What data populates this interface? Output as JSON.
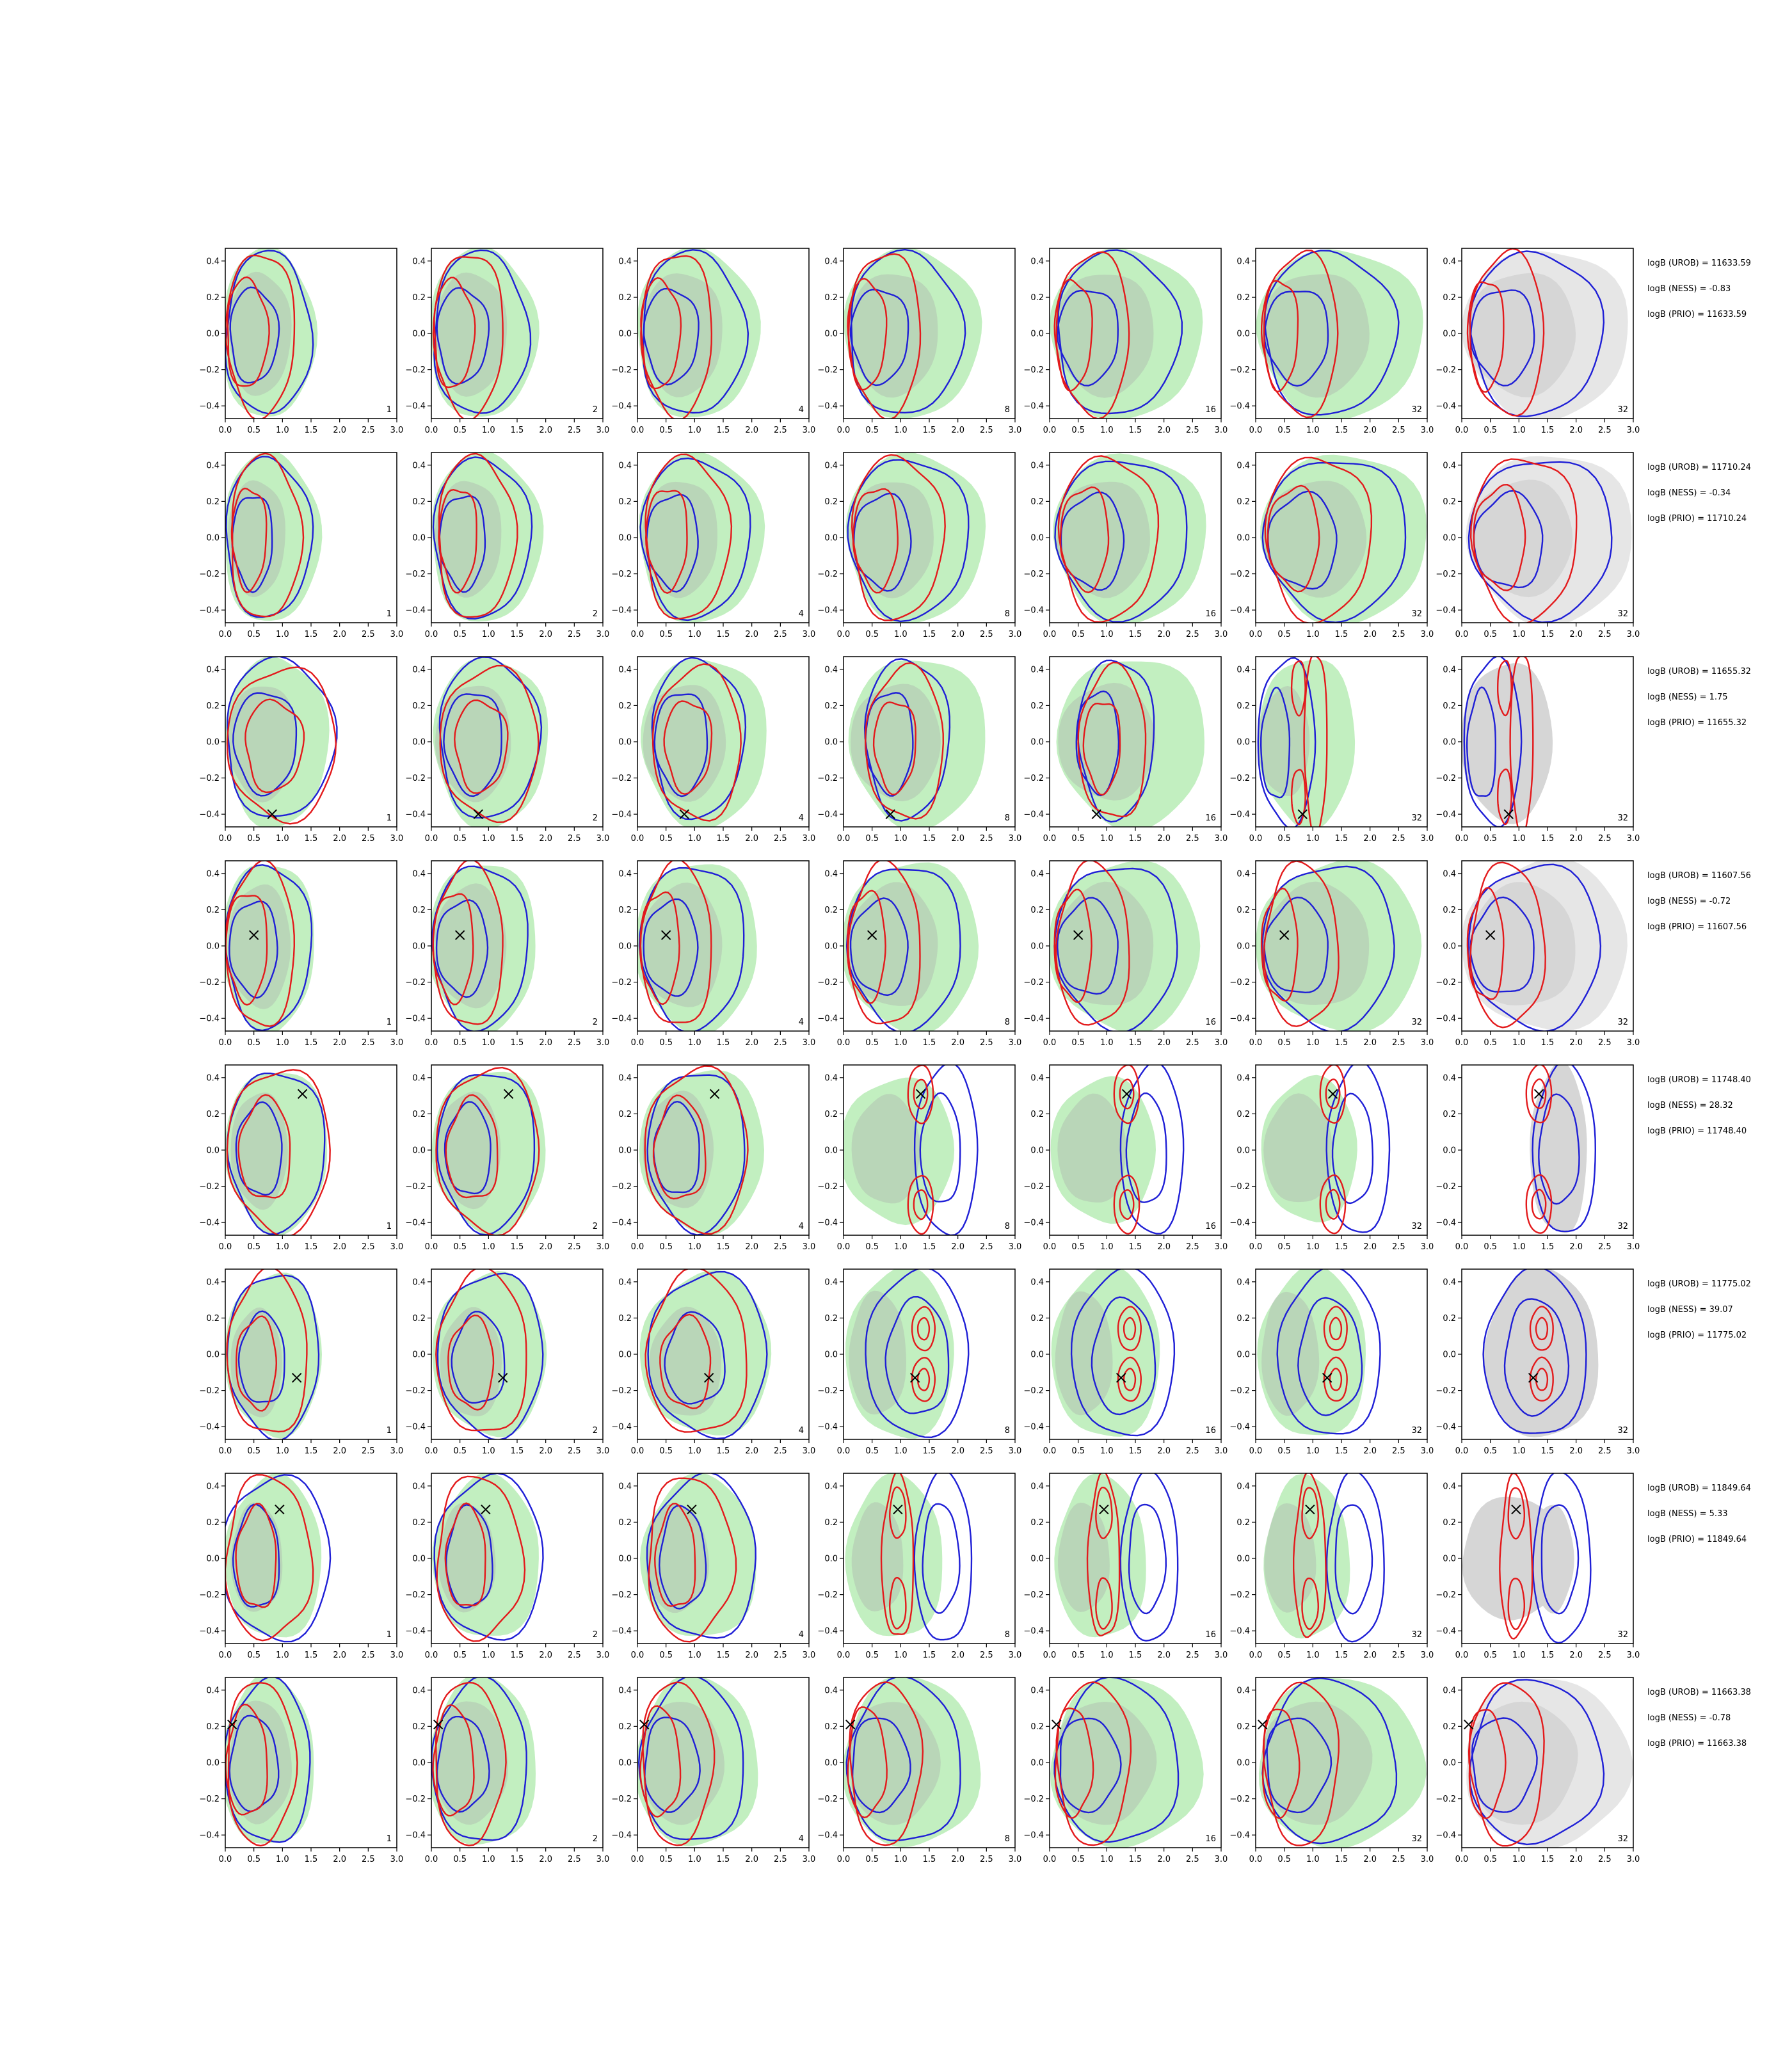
{
  "chart_data": {
    "type": "contour-grid",
    "rows": 8,
    "cols": 7,
    "xlim": [
      0.0,
      3.0
    ],
    "ylim": [
      -0.47,
      0.47
    ],
    "x_ticks": [
      "0.0",
      "0.5",
      "1.0",
      "1.5",
      "2.0",
      "2.5",
      "3.0"
    ],
    "y_ticks": [
      "0.4",
      "0.2",
      "0.0",
      "−0.2",
      "−0.4"
    ],
    "y_tick_values": [
      0.4,
      0.2,
      0.0,
      -0.2,
      -0.4
    ],
    "panel_labels": [
      "1",
      "2",
      "4",
      "8",
      "16",
      "32",
      "32"
    ],
    "colors": {
      "red": "#e31a1c",
      "blue": "#1f1fd6",
      "green": "#c2efc0",
      "grey": "#e6e6e6",
      "grey_inner": "#d6d6d6"
    },
    "row_data": [
      {
        "marker": null,
        "kind": "a",
        "logB": {
          "urob": "logB (UROB) = 11633.59",
          "ness": "logB (NESS) = -0.83",
          "prio": "logB (PRIO) = 11633.59"
        }
      },
      {
        "marker": null,
        "kind": "b",
        "logB": {
          "urob": "logB (UROB) = 11710.24",
          "ness": "logB (NESS) = -0.34",
          "prio": "logB (PRIO) = 11710.24"
        }
      },
      {
        "marker": [
          0.82,
          -0.4
        ],
        "kind": "c",
        "logB": {
          "urob": "logB (UROB) = 11655.32",
          "ness": "logB (NESS) = 1.75",
          "prio": "logB (PRIO) = 11655.32"
        }
      },
      {
        "marker": [
          0.5,
          0.06
        ],
        "kind": "a",
        "logB": {
          "urob": "logB (UROB) = 11607.56",
          "ness": "logB (NESS) = -0.72",
          "prio": "logB (PRIO) = 11607.56"
        }
      },
      {
        "marker": [
          1.35,
          0.31
        ],
        "kind": "e",
        "logB": {
          "urob": "logB (UROB) = 11748.40",
          "ness": "logB (NESS) = 28.32",
          "prio": "logB (PRIO) = 11748.40"
        }
      },
      {
        "marker": [
          1.25,
          -0.13
        ],
        "kind": "f",
        "logB": {
          "urob": "logB (UROB) = 11775.02",
          "ness": "logB (NESS) = 39.07",
          "prio": "logB (PRIO) = 11775.02"
        }
      },
      {
        "marker": [
          0.95,
          0.27
        ],
        "kind": "g",
        "logB": {
          "urob": "logB (UROB) = 11849.64",
          "ness": "logB (NESS) = 5.33",
          "prio": "logB (PRIO) = 11849.64"
        }
      },
      {
        "marker": [
          0.12,
          0.21
        ],
        "kind": "a",
        "logB": {
          "urob": "logB (UROB) = 11663.38",
          "ness": "logB (NESS) = -0.78",
          "prio": "logB (PRIO) = 11663.38"
        }
      }
    ]
  }
}
